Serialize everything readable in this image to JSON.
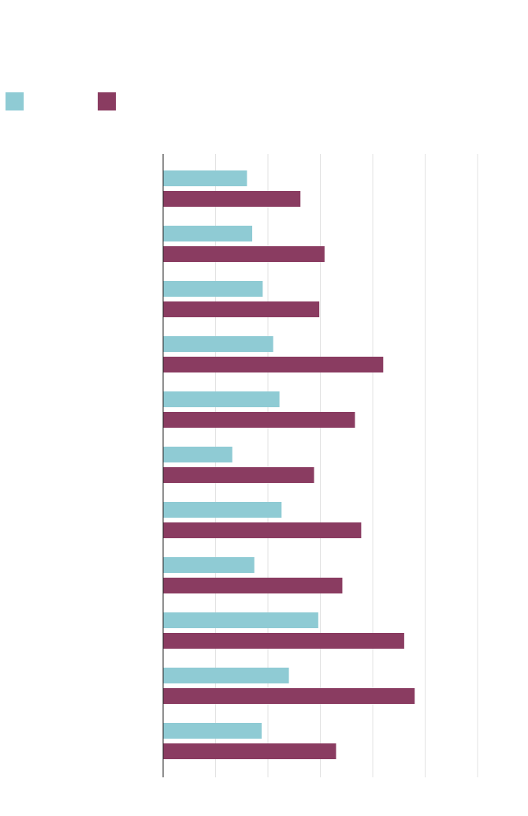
{
  "colors": {
    "series_a": "#8fcbd4",
    "series_b": "#8a3c61",
    "grid": "#e3e3e3",
    "axis": "#222222"
  },
  "legend": {
    "items": [
      {
        "color": "#8fcbd4",
        "label": ""
      },
      {
        "color": "#8a3c61",
        "label": ""
      }
    ]
  },
  "chart_data": {
    "type": "bar",
    "orientation": "horizontal",
    "title": "",
    "xlabel": "",
    "ylabel": "",
    "grid": true,
    "xlim": [
      0,
      6
    ],
    "categories": [
      "",
      "",
      "",
      "",
      "",
      "",
      "",
      "",
      "",
      "",
      ""
    ],
    "series": [
      {
        "color": "#8fcbd4",
        "values": [
          1.6,
          1.7,
          1.9,
          2.1,
          2.22,
          1.32,
          2.26,
          1.74,
          2.96,
          2.4,
          1.88
        ]
      },
      {
        "color": "#8a3c61",
        "values": [
          2.62,
          3.08,
          2.98,
          4.2,
          3.66,
          2.88,
          3.78,
          3.42,
          4.6,
          4.8,
          3.3
        ]
      }
    ]
  }
}
